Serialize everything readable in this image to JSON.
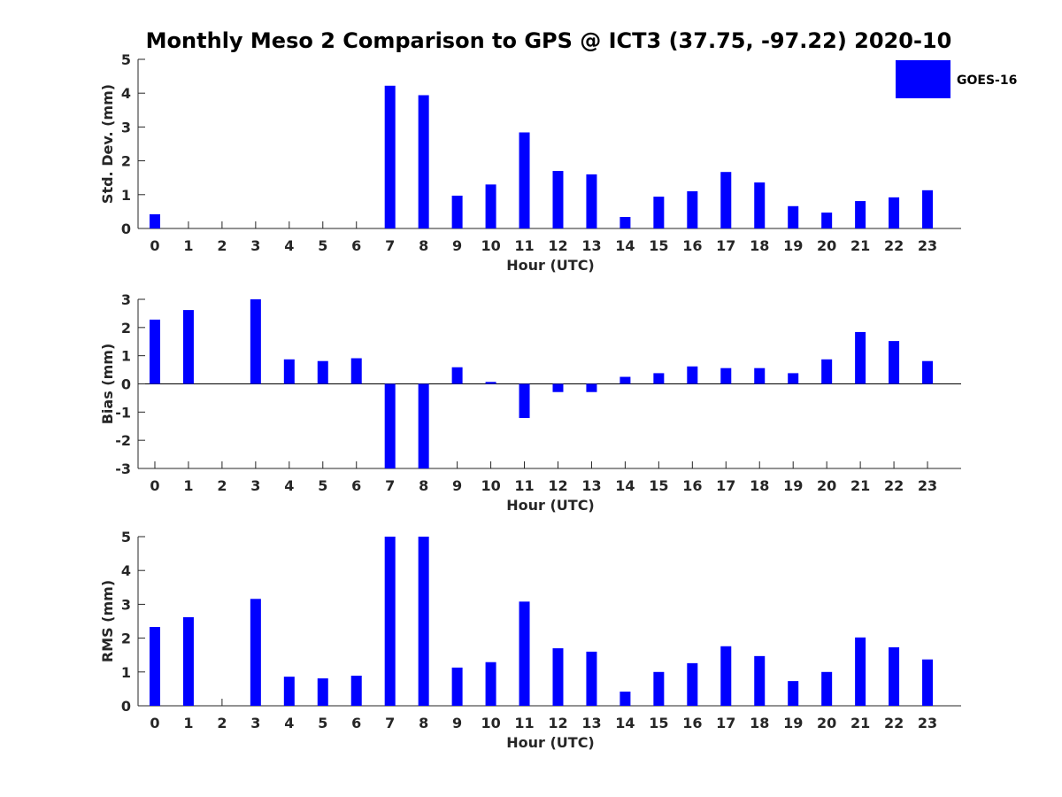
{
  "figure": {
    "title": "Monthly Meso 2 Comparison to GPS @ ICT3 (37.75, -97.22) 2020-10",
    "legend": {
      "label": "GOES-16",
      "color": "#0000ff",
      "placement": "top-right"
    }
  },
  "chart_data": [
    {
      "type": "bar",
      "title": "",
      "xlabel": "Hour (UTC)",
      "ylabel": "Std. Dev. (mm)",
      "ylim": [
        0,
        5
      ],
      "yticks": [
        0,
        1,
        2,
        3,
        4,
        5
      ],
      "categories": [
        0,
        1,
        2,
        3,
        4,
        5,
        6,
        7,
        8,
        9,
        10,
        11,
        12,
        13,
        14,
        15,
        16,
        17,
        18,
        19,
        20,
        21,
        22,
        23
      ],
      "series": [
        {
          "name": "GOES-16",
          "color": "#0000ff",
          "values": [
            0.42,
            0,
            0,
            0,
            0,
            0,
            0,
            4.22,
            3.94,
            0.97,
            1.3,
            2.84,
            1.7,
            1.6,
            0.34,
            0.94,
            1.1,
            1.67,
            1.36,
            0.66,
            0.47,
            0.81,
            0.92,
            1.13
          ]
        }
      ]
    },
    {
      "type": "bar",
      "title": "",
      "xlabel": "Hour (UTC)",
      "ylabel": "Bias (mm)",
      "ylim": [
        -3,
        3
      ],
      "yticks": [
        -3,
        -2,
        -1,
        0,
        1,
        2,
        3
      ],
      "categories": [
        0,
        1,
        2,
        3,
        4,
        5,
        6,
        7,
        8,
        9,
        10,
        11,
        12,
        13,
        14,
        15,
        16,
        17,
        18,
        19,
        20,
        21,
        22,
        23
      ],
      "series": [
        {
          "name": "GOES-16",
          "color": "#0000ff",
          "values": [
            2.28,
            2.62,
            0,
            3.0,
            0.87,
            0.81,
            0.91,
            -3.0,
            -3.0,
            0.59,
            0.07,
            -1.21,
            -0.29,
            -0.29,
            0.25,
            0.38,
            0.62,
            0.56,
            0.56,
            0.38,
            0.87,
            1.84,
            1.52,
            0.81
          ]
        }
      ]
    },
    {
      "type": "bar",
      "title": "",
      "xlabel": "Hour (UTC)",
      "ylabel": "RMS (mm)",
      "ylim": [
        0,
        5
      ],
      "yticks": [
        0,
        1,
        2,
        3,
        4,
        5
      ],
      "categories": [
        0,
        1,
        2,
        3,
        4,
        5,
        6,
        7,
        8,
        9,
        10,
        11,
        12,
        13,
        14,
        15,
        16,
        17,
        18,
        19,
        20,
        21,
        22,
        23
      ],
      "series": [
        {
          "name": "GOES-16",
          "color": "#0000ff",
          "values": [
            2.33,
            2.62,
            0,
            3.16,
            0.86,
            0.81,
            0.89,
            5.0,
            5.0,
            1.13,
            1.29,
            3.08,
            1.7,
            1.6,
            0.42,
            1.0,
            1.26,
            1.76,
            1.47,
            0.73,
            1.0,
            2.02,
            1.73,
            1.37
          ]
        }
      ]
    }
  ]
}
